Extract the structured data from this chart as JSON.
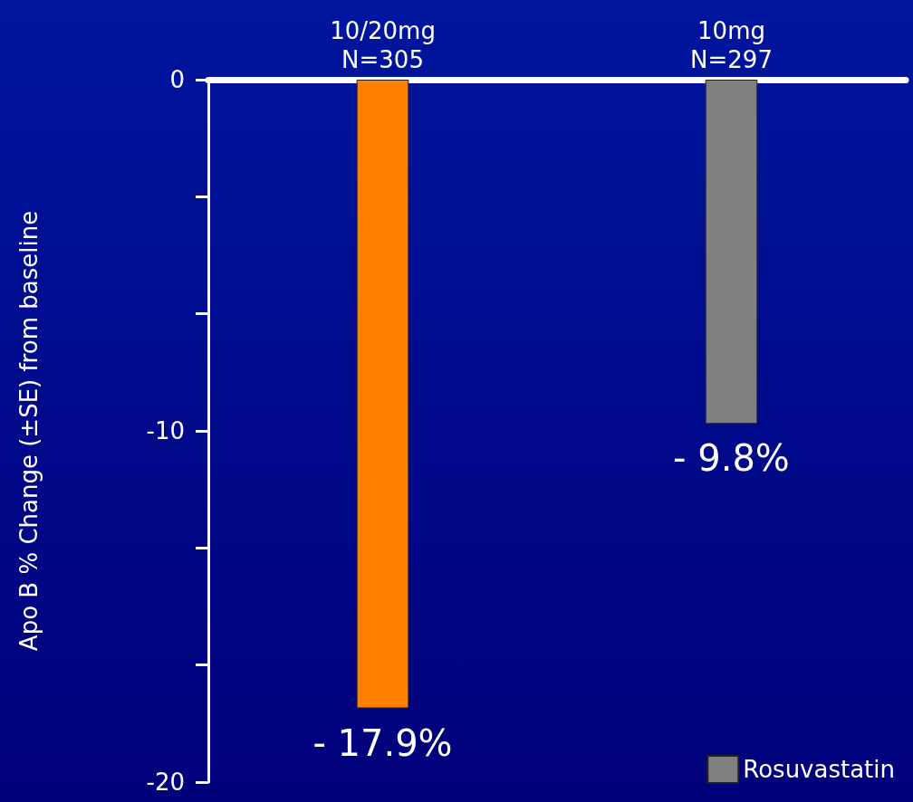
{
  "chart_data": {
    "type": "bar",
    "ylabel": "Apo B % Change (±SE) from baseline",
    "categories": [
      "10/20mg\nN=305",
      "10mg\nN=297"
    ],
    "series": [
      {
        "color": "#ff7f00",
        "values": [
          -17.9,
          null
        ],
        "value_labels": [
          "- 17.9%",
          null
        ]
      },
      {
        "name": "Rosuvastatin",
        "color": "#808080",
        "values": [
          null,
          -9.8
        ],
        "value_labels": [
          null,
          "- 9.8%"
        ]
      }
    ],
    "ylim": [
      -20,
      0
    ],
    "yticks": [
      -20,
      {
        "value": -16.667,
        "label": null
      },
      {
        "value": -13.333,
        "label": null
      },
      -10,
      {
        "value": -6.667,
        "label": null
      },
      {
        "value": -3.333,
        "label": null
      },
      0
    ],
    "grid": false,
    "legend": "bottom right"
  }
}
